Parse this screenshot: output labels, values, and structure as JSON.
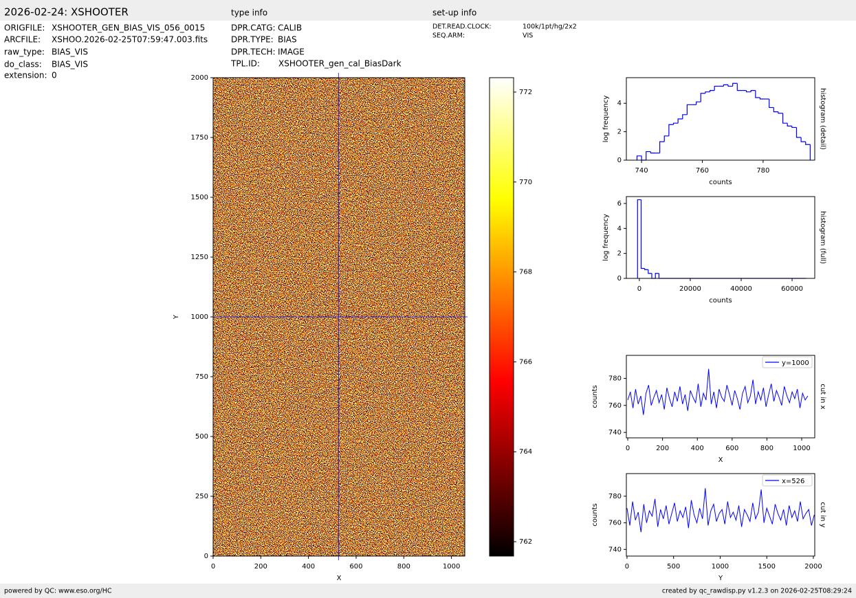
{
  "header": {
    "title": "2026-02-24: XSHOOTER",
    "type_info_title": "type info",
    "setup_info_title": "set-up info",
    "file_info": [
      [
        "ORIGFILE:",
        "XSHOOTER_GEN_BIAS_VIS_056_0015"
      ],
      [
        "ARCFILE:",
        "XSHOO.2026-02-25T07:59:47.003.fits"
      ],
      [
        "raw_type:",
        "BIAS_VIS"
      ],
      [
        "do_class:",
        "BIAS_VIS"
      ],
      [
        "extension:",
        "0"
      ]
    ],
    "type_info": [
      [
        "DPR.CATG:",
        "CALIB"
      ],
      [
        "DPR.TYPE:",
        "BIAS"
      ],
      [
        "DPR.TECH:",
        "IMAGE"
      ],
      [
        "TPL.ID:",
        "XSHOOTER_gen_cal_BiasDark"
      ]
    ],
    "setup_info": [
      [
        "DET.READ.CLOCK:",
        "100k/1pt/hg/2x2"
      ],
      [
        "SEQ.ARM:",
        "VIS"
      ]
    ]
  },
  "footer": {
    "left": "powered by QC: www.eso.org/HC",
    "right": "created by qc_rawdisp.py v1.2.3 on 2026-02-25T08:29:24"
  },
  "chart_data": [
    {
      "type": "image",
      "xlabel": "X",
      "ylabel": "Y",
      "xlim": [
        0,
        1056
      ],
      "ylim": [
        0,
        2000
      ],
      "xticks": [
        0,
        200,
        400,
        600,
        800,
        1000
      ],
      "yticks": [
        0,
        250,
        500,
        750,
        1000,
        1250,
        1500,
        1750,
        2000
      ],
      "crosshair": {
        "x": 526,
        "y": 1000
      },
      "crosshair_color": "#0000ff"
    },
    {
      "type": "colorbar",
      "ylim": [
        761.68,
        772.32
      ],
      "yticks": [
        762,
        764,
        766,
        768,
        770,
        772
      ]
    },
    {
      "type": "histogram",
      "xlabel": "counts",
      "ylabel": "log frequency",
      "side_label": "histogram (detail)",
      "color": "#0000ff",
      "xlim": [
        735,
        797
      ],
      "ylim": [
        0,
        5.8
      ],
      "xticks": [
        740,
        760,
        780
      ],
      "yticks": [
        0,
        2,
        4
      ],
      "bins": [
        738.5,
        740,
        741.5,
        743,
        744.5,
        746,
        747.5,
        749,
        750.5,
        752,
        753.5,
        755,
        756.5,
        758,
        759.5,
        761,
        762.5,
        764,
        765.5,
        767,
        768.5,
        770,
        771.5,
        773,
        774.5,
        776,
        777.5,
        779,
        780.5,
        782,
        783.5,
        785,
        786.5,
        788,
        789.5,
        791,
        792.5,
        794,
        795.5
      ],
      "values": [
        0.3,
        0,
        0.6,
        0.5,
        0.5,
        1.3,
        1.7,
        2.5,
        2.6,
        2.9,
        3.2,
        3.9,
        3.9,
        4.1,
        4.7,
        4.8,
        4.9,
        5.2,
        5.2,
        5.3,
        5.2,
        5.4,
        4.9,
        4.9,
        4.8,
        4.9,
        4.4,
        4.3,
        4.3,
        3.7,
        3.4,
        3.3,
        2.6,
        2.4,
        2.3,
        1.6,
        1.3,
        1.1
      ]
    },
    {
      "type": "histogram",
      "xlabel": "counts",
      "ylabel": "log frequency",
      "side_label": "histogram (full)",
      "color": "#0000ff",
      "xlim": [
        -5100,
        68900
      ],
      "ylim": [
        0,
        6.55
      ],
      "xticks": [
        0,
        20000,
        40000,
        60000
      ],
      "yticks": [
        0,
        2,
        4,
        6
      ],
      "bins": [
        -700,
        700,
        2100,
        3500,
        4900,
        6300,
        7700,
        65536
      ],
      "values": [
        6.3,
        0.8,
        0.7,
        0.4,
        0,
        0.4,
        0
      ]
    },
    {
      "type": "line",
      "xlabel": "X",
      "ylabel": "counts",
      "side_label": "cut in x",
      "xlim": [
        -8,
        1075
      ],
      "ylim": [
        736,
        797
      ],
      "xticks": [
        0,
        200,
        400,
        600,
        800,
        1000
      ],
      "yticks": [
        740,
        760,
        780
      ],
      "x": [
        0,
        15,
        30,
        45,
        60,
        75,
        90,
        105,
        120,
        135,
        150,
        165,
        180,
        195,
        210,
        225,
        240,
        255,
        270,
        285,
        300,
        315,
        330,
        345,
        360,
        375,
        390,
        405,
        420,
        435,
        450,
        465,
        480,
        495,
        510,
        525,
        540,
        555,
        570,
        585,
        600,
        615,
        630,
        645,
        660,
        675,
        690,
        705,
        720,
        735,
        750,
        765,
        780,
        795,
        810,
        825,
        840,
        855,
        870,
        885,
        900,
        915,
        930,
        945,
        960,
        975,
        990,
        1005,
        1020,
        1035
      ],
      "series": [
        {
          "name": "y=1000",
          "color": "#0000ff",
          "values": [
            764,
            770,
            758,
            772,
            761,
            767,
            753,
            769,
            775,
            760,
            766,
            771,
            762,
            768,
            757,
            773,
            765,
            759,
            770,
            763,
            774,
            761,
            768,
            756,
            771,
            766,
            762,
            776,
            759,
            769,
            764,
            787,
            761,
            770,
            758,
            772,
            766,
            763,
            775,
            768,
            760,
            771,
            765,
            757,
            769,
            774,
            762,
            767,
            779,
            761,
            770,
            764,
            773,
            759,
            768,
            776,
            763,
            771,
            766,
            760,
            774,
            767,
            762,
            770,
            765,
            772,
            758,
            769,
            764,
            767
          ]
        }
      ]
    },
    {
      "type": "line",
      "xlabel": "Y",
      "ylabel": "counts",
      "side_label": "cut in y",
      "xlim": [
        -7,
        2015
      ],
      "ylim": [
        735,
        797
      ],
      "xticks": [
        0,
        500,
        1000,
        1500,
        2000
      ],
      "yticks": [
        740,
        760,
        780
      ],
      "x": [
        0,
        30,
        60,
        90,
        120,
        150,
        180,
        210,
        240,
        270,
        300,
        330,
        360,
        390,
        420,
        450,
        480,
        510,
        540,
        570,
        600,
        630,
        660,
        690,
        720,
        750,
        780,
        810,
        840,
        870,
        900,
        930,
        960,
        990,
        1020,
        1050,
        1080,
        1110,
        1140,
        1170,
        1200,
        1230,
        1260,
        1290,
        1320,
        1350,
        1380,
        1410,
        1440,
        1470,
        1500,
        1530,
        1560,
        1590,
        1620,
        1650,
        1680,
        1710,
        1740,
        1770,
        1800,
        1830,
        1860,
        1890,
        1920,
        1950,
        1980,
        2010
      ],
      "series": [
        {
          "name": "x=526",
          "color": "#0000ff",
          "values": [
            771,
            758,
            776,
            762,
            768,
            753,
            774,
            760,
            769,
            765,
            778,
            757,
            770,
            763,
            773,
            759,
            767,
            775,
            761,
            769,
            764,
            772,
            756,
            777,
            766,
            760,
            771,
            763,
            786,
            758,
            769,
            774,
            761,
            767,
            770,
            759,
            776,
            764,
            768,
            762,
            773,
            757,
            770,
            766,
            761,
            775,
            763,
            768,
            785,
            760,
            771,
            765,
            759,
            774,
            767,
            762,
            770,
            758,
            773,
            764,
            769,
            761,
            776,
            763,
            767,
            770,
            758,
            766
          ]
        }
      ]
    }
  ]
}
